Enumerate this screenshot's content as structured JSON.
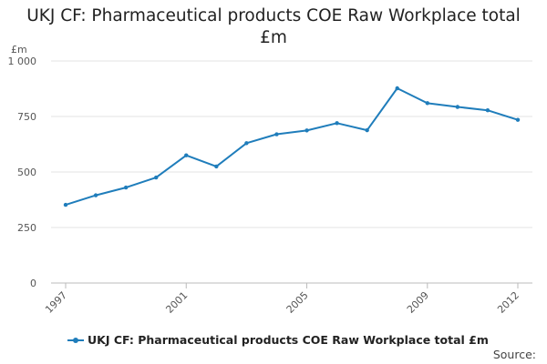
{
  "chart_data": {
    "type": "line",
    "title": "UKJ CF: Pharmaceutical products COE Raw Workplace total £m",
    "title_lines": [
      "UKJ CF: Pharmaceutical products COE Raw Workplace total",
      "£m"
    ],
    "ylabel": "£m",
    "xlabel": "",
    "ylim": [
      0,
      1000
    ],
    "yticks": [
      0,
      250,
      500,
      750,
      1000
    ],
    "ytick_labels": [
      "0",
      "250",
      "500",
      "750",
      "1 000"
    ],
    "xticks": [
      1997,
      2001,
      2005,
      2009,
      2012
    ],
    "xtick_labels": [
      "1997",
      "2001",
      "2005",
      "2009",
      "2012"
    ],
    "x": [
      1997,
      1998,
      1999,
      2000,
      2001,
      2002,
      2003,
      2004,
      2005,
      2006,
      2007,
      2008,
      2009,
      2010,
      2011,
      2012
    ],
    "series": [
      {
        "name": "UKJ CF: Pharmaceutical products COE Raw Workplace total £m",
        "color": "#1f7dbb",
        "values": [
          352,
          395,
          430,
          475,
          575,
          525,
          630,
          670,
          687,
          720,
          688,
          877,
          810,
          793,
          778,
          735
        ]
      }
    ],
    "grid": true,
    "legend_position": "bottom-left"
  },
  "source_label": "Source:"
}
